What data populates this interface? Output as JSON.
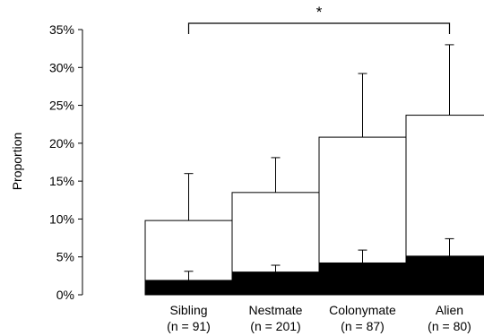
{
  "chart_data": {
    "type": "bar",
    "ylabel": "Proportion",
    "ylim": [
      0,
      35
    ],
    "yticks": [
      "0%",
      "5%",
      "10%",
      "15%",
      "20%",
      "25%",
      "30%",
      "35%"
    ],
    "ytick_values": [
      0,
      5,
      10,
      15,
      20,
      25,
      30,
      35
    ],
    "categories": [
      "Sibling",
      "Nestmate",
      "Colonymate",
      "Alien"
    ],
    "category_counts": [
      "(n = 91)",
      "(n = 201)",
      "(n = 87)",
      "(n = 80)"
    ],
    "series": [
      {
        "values": [
          9.8,
          13.5,
          20.8,
          23.7
        ],
        "error_upper": [
          16.0,
          18.1,
          29.2,
          33.0
        ],
        "color": "#ffffff"
      },
      {
        "values": [
          1.9,
          3.0,
          4.2,
          5.1
        ],
        "error_upper": [
          3.1,
          3.9,
          5.9,
          7.4
        ],
        "color": "#000000"
      }
    ],
    "significance": {
      "label": "*",
      "from_category": 0,
      "to_category": 3
    },
    "grid": false,
    "legend": "none"
  }
}
